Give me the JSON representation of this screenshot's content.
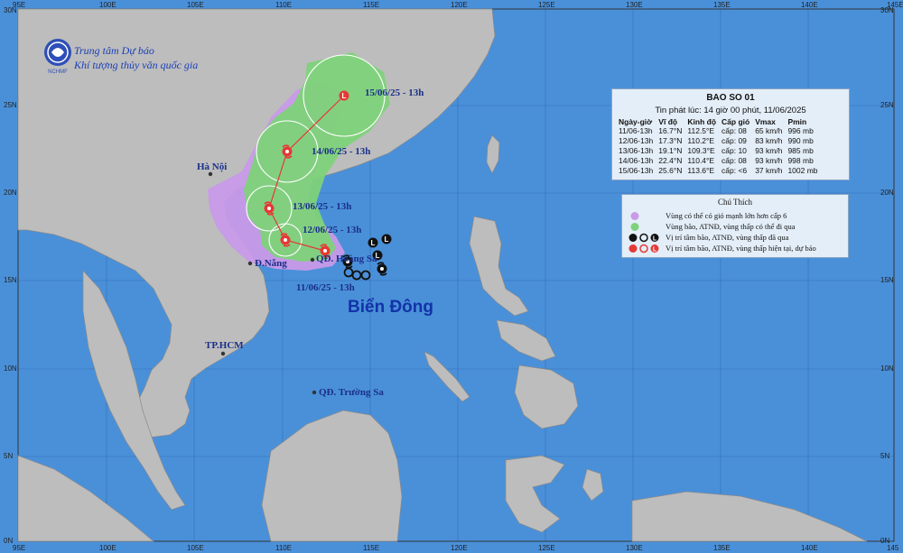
{
  "agency": {
    "line1": "Trung tâm Dự báo",
    "line2": "Khí tượng thủy văn quốc gia",
    "logo_text": "NCHMF"
  },
  "sea_name": "Biển Đông",
  "places": {
    "hanoi": "Hà Nội",
    "danang": "Đ.Nẵng",
    "hoangsa": "QĐ. Hoàng Sa",
    "truongsa": "QĐ. Trường Sa",
    "hcm": "TP.HCM"
  },
  "track_labels": [
    "11/06/25 - 13h",
    "12/06/25 - 13h",
    "13/06/25 - 13h",
    "14/06/25 - 13h",
    "15/06/25 - 13h"
  ],
  "axes": {
    "lon_top": [
      "95E",
      "100E",
      "105E",
      "110E",
      "115E",
      "120E",
      "125E",
      "130E",
      "135E",
      "140E",
      "145E"
    ],
    "lon_bottom": [
      "95E",
      "100E",
      "105E",
      "110E",
      "115E",
      "120E",
      "125E",
      "130E",
      "135E",
      "140E",
      "145"
    ],
    "lat_left": [
      "30N",
      "25N",
      "20N",
      "15N",
      "10N",
      "5N",
      "0N"
    ],
    "lat_right": [
      "30N",
      "25N",
      "20N",
      "15N",
      "10N",
      "5N",
      "0N"
    ]
  },
  "info_box": {
    "title": "BAO SO 01",
    "issued": "Tin phát lúc: 14 giờ 00 phút, 11/06/2025",
    "headers": [
      "Ngày-giờ",
      "Vĩ độ",
      "Kinh độ",
      "Cấp gió",
      "Vmax",
      "Pmin"
    ],
    "rows": [
      [
        "11/06-13h",
        "16.7°N",
        "112.5°E",
        "cấp: 08",
        "65 km/h",
        "996 mb"
      ],
      [
        "12/06-13h",
        "17.3°N",
        "110.2°E",
        "cấp: 09",
        "83 km/h",
        "990 mb"
      ],
      [
        "13/06-13h",
        "19.1°N",
        "109.3°E",
        "cấp: 10",
        "93 km/h",
        "985 mb"
      ],
      [
        "14/06-13h",
        "22.4°N",
        "110.4°E",
        "cấp: 08",
        "93 km/h",
        "998 mb"
      ],
      [
        "15/06-13h",
        "25.6°N",
        "113.6°E",
        "cấp: <6",
        "37 km/h",
        "1002 mb"
      ]
    ]
  },
  "legend": {
    "title": "Chú Thích",
    "items": [
      "Vùng có thể có gió mạnh lớn hơn cấp 6",
      "Vùng bão, ATNĐ, vùng thấp có thể đi qua",
      "Vị trí tâm bão, ATNĐ, vùng thấp đã qua",
      "Vị trí tâm bão, ATNĐ, vùng thấp hiện tại, dự báo"
    ],
    "symbol_letter": "L"
  },
  "colors": {
    "sea": "#4a90d9",
    "land": "#bdbdbd",
    "wind_zone": "#c89ae8",
    "storm_zone": "#7ed27a",
    "track": "#e53935",
    "label_text": "#1a2f8a"
  }
}
